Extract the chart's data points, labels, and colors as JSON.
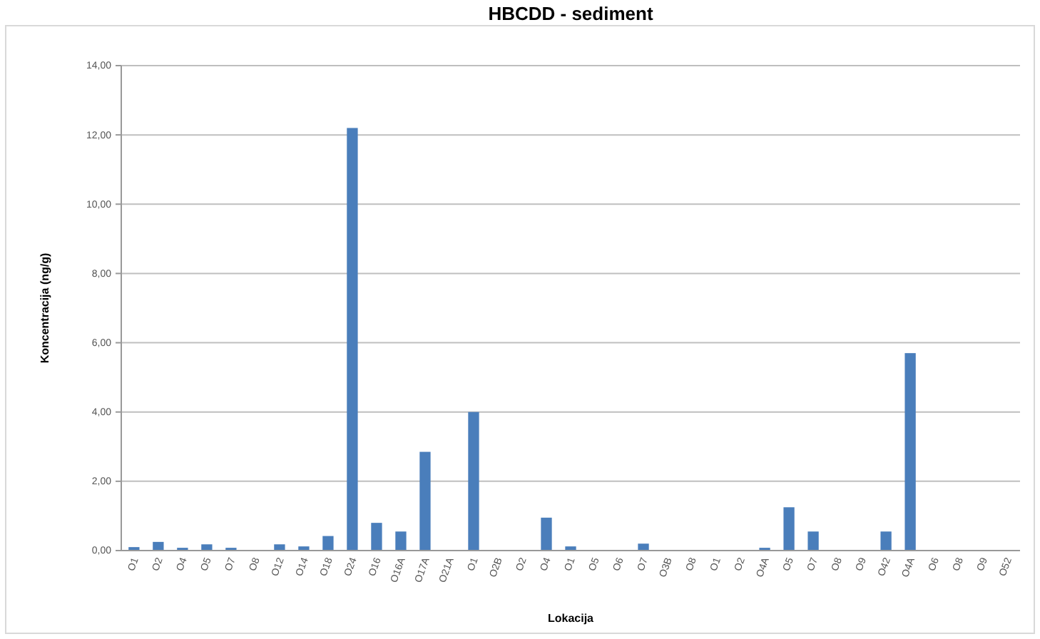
{
  "chart_data": {
    "type": "bar",
    "title": "HBCDD - sediment",
    "xlabel": "Lokacija",
    "ylabel": "Koncentracija (ng/g)",
    "categories": [
      "O1",
      "O2",
      "O4",
      "O5",
      "O7",
      "O8",
      "O12",
      "O14",
      "O18",
      "O24",
      "O16",
      "O16A",
      "O17A",
      "O21A",
      "O1",
      "O2B",
      "O2",
      "O4",
      "O1",
      "O5",
      "O6",
      "O7",
      "O3B",
      "O8",
      "O1",
      "O2",
      "O4A",
      "O5",
      "O7",
      "O8",
      "O9",
      "O42",
      "O4A",
      "O6",
      "O8",
      "O9",
      "O52"
    ],
    "values": [
      0.1,
      0.25,
      0.08,
      0.18,
      0.08,
      0,
      0.18,
      0.12,
      0.42,
      12.2,
      0.8,
      0.55,
      2.85,
      0,
      4.0,
      0,
      0,
      0.95,
      0.12,
      0,
      0,
      0.2,
      0,
      0,
      0,
      0,
      0.08,
      1.25,
      0.55,
      0,
      0,
      0.55,
      5.7,
      0,
      0,
      0,
      0
    ],
    "color": "#4a7ebb",
    "ylim": [
      0,
      14
    ],
    "yticks": [
      {
        "value": 0,
        "label": "0,00"
      },
      {
        "value": 2,
        "label": "2,00"
      },
      {
        "value": 4,
        "label": "4,00"
      },
      {
        "value": 6,
        "label": "6,00"
      },
      {
        "value": 8,
        "label": "8,00"
      },
      {
        "value": 10,
        "label": "10,00"
      },
      {
        "value": 12,
        "label": "12,00"
      },
      {
        "value": 14,
        "label": "14,00"
      }
    ],
    "grid": "y"
  }
}
